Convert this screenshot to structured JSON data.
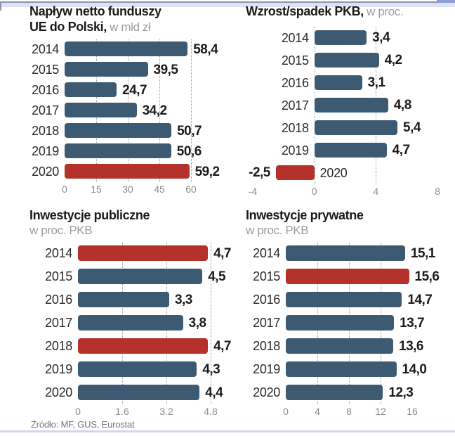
{
  "page": {
    "source_note": "Źródło: MF, GUS, Eurostat"
  },
  "colors": {
    "bar": "#3c5a72",
    "bar_highlight": "#b5312b",
    "gridline": "#9c9ca4",
    "axis_label": "#8a8a8f",
    "title": "#1a1a1a",
    "title_light": "#9b9ba3",
    "top_border_line": "#8f94a8",
    "top_border_band": "#dee2f4",
    "bottom_border_line": "#cbd7ea"
  },
  "chart_data": [
    {
      "id": "eu-funds-net-inflow",
      "type": "bar",
      "orientation": "horizontal",
      "title_lines": [
        [
          {
            "text": "Napływ netto funduszy",
            "style": "bold"
          }
        ],
        [
          {
            "text": "UE do Polski,",
            "style": "bold"
          },
          {
            "text": " w mld zł",
            "style": "light"
          }
        ]
      ],
      "categories": [
        "2014",
        "2015",
        "2016",
        "2017",
        "2018",
        "2019",
        "2020"
      ],
      "values": [
        58.4,
        39.5,
        24.7,
        34.2,
        50.7,
        50.6,
        59.2
      ],
      "value_labels": [
        "58,4",
        "39,5",
        "24,7",
        "34,2",
        "50,7",
        "50,6",
        "59,2"
      ],
      "highlight_indices": [
        6
      ],
      "xmin": 0,
      "xmax": 60,
      "ticks": [
        {
          "value": 0,
          "label": "0"
        },
        {
          "value": 15,
          "label": "15"
        },
        {
          "value": 30,
          "label": "30"
        },
        {
          "value": 45,
          "label": "45"
        },
        {
          "value": 60,
          "label": "60"
        }
      ],
      "gridline_values": [
        15,
        30,
        45,
        60
      ],
      "grid": true,
      "legend": false
    },
    {
      "id": "gdp-growth-decline",
      "type": "bar",
      "orientation": "horizontal",
      "title_lines": [
        [
          {
            "text": "Wzrost/spadek PKB,",
            "style": "bold"
          },
          {
            "text": " w proc.",
            "style": "light"
          }
        ]
      ],
      "categories": [
        "2014",
        "2015",
        "2016",
        "2017",
        "2018",
        "2019",
        "2020"
      ],
      "values": [
        3.4,
        4.2,
        3.1,
        4.8,
        5.4,
        4.7,
        -2.5
      ],
      "value_labels": [
        "3,4",
        "4,2",
        "3,1",
        "4,8",
        "5,4",
        "4,7",
        "-2,5"
      ],
      "highlight_indices": [
        6
      ],
      "xmin": -4,
      "xmax": 8,
      "ticks": [
        {
          "value": -4,
          "label": "-4"
        },
        {
          "value": 0,
          "label": "0"
        },
        {
          "value": 4,
          "label": "4"
        },
        {
          "value": 8,
          "label": "8"
        }
      ],
      "gridline_values": [
        0,
        4
      ],
      "grid": true,
      "legend": false
    },
    {
      "id": "public-investments",
      "type": "bar",
      "orientation": "horizontal",
      "title_lines": [
        [
          {
            "text": "Inwestycje publiczne",
            "style": "bold"
          }
        ],
        [
          {
            "text": "w proc. PKB",
            "style": "light"
          }
        ]
      ],
      "categories": [
        "2014",
        "2015",
        "2016",
        "2017",
        "2018",
        "2019",
        "2020"
      ],
      "values": [
        4.7,
        4.5,
        3.3,
        3.8,
        4.7,
        4.3,
        4.4
      ],
      "value_labels": [
        "4,7",
        "4,5",
        "3,3",
        "3,8",
        "4,7",
        "4,3",
        "4,4"
      ],
      "highlight_indices": [
        0,
        4
      ],
      "xmin": 0,
      "xmax": 4.8,
      "ticks": [
        {
          "value": 0,
          "label": "0"
        },
        {
          "value": 1.6,
          "label": "1.6"
        },
        {
          "value": 3.2,
          "label": "3.2"
        },
        {
          "value": 4.8,
          "label": "4.8"
        }
      ],
      "gridline_values": [
        1.6,
        3.2,
        4.8
      ],
      "grid": true,
      "legend": false
    },
    {
      "id": "private-investments",
      "type": "bar",
      "orientation": "horizontal",
      "title_lines": [
        [
          {
            "text": "Inwestycje prywatne",
            "style": "bold"
          }
        ],
        [
          {
            "text": "w proc. PKB",
            "style": "light"
          }
        ]
      ],
      "categories": [
        "2014",
        "2015",
        "2016",
        "2017",
        "2018",
        "2019",
        "2020"
      ],
      "values": [
        15.1,
        15.6,
        14.7,
        13.7,
        13.6,
        14.0,
        12.3
      ],
      "value_labels": [
        "15,1",
        "15,6",
        "14,7",
        "13,7",
        "13,6",
        "14,0",
        "12,3"
      ],
      "highlight_indices": [
        1
      ],
      "xmin": 0,
      "xmax": 16,
      "ticks": [
        {
          "value": 0,
          "label": "0"
        },
        {
          "value": 4,
          "label": "4"
        },
        {
          "value": 8,
          "label": "8"
        },
        {
          "value": 12,
          "label": "12"
        },
        {
          "value": 16,
          "label": "16"
        }
      ],
      "gridline_values": [
        4,
        8,
        12
      ],
      "grid": true,
      "legend": false
    }
  ]
}
